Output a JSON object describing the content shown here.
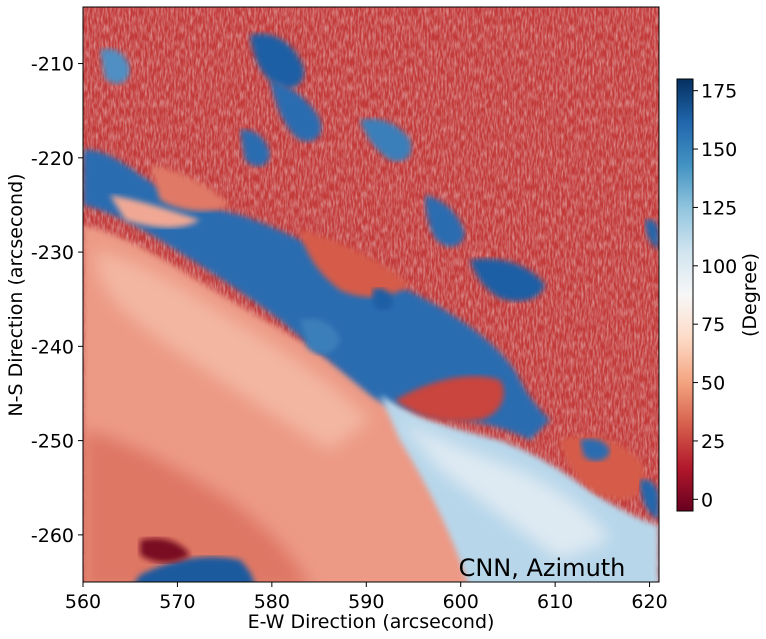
{
  "chart_data": {
    "type": "heatmap",
    "title": "",
    "xlabel": "E-W Direction (arcsecond)",
    "ylabel": "N-S Direction (arcsecond)",
    "xlim": [
      560,
      621
    ],
    "ylim": [
      -265,
      -204
    ],
    "xticks": [
      560,
      570,
      580,
      590,
      600,
      610,
      620
    ],
    "xtick_labels": [
      "560",
      "570",
      "580",
      "590",
      "600",
      "610",
      "620"
    ],
    "yticks": [
      -210,
      -220,
      -230,
      -240,
      -250,
      -260
    ],
    "ytick_labels": [
      "-210",
      "-220",
      "-230",
      "-240",
      "-250",
      "-260"
    ],
    "annotation": "CNN, Azimuth",
    "colorbar": {
      "label": "(Degree)",
      "range": [
        -5,
        180
      ],
      "ticks": [
        0,
        25,
        50,
        75,
        100,
        125,
        150,
        175
      ],
      "tick_labels": [
        "0",
        "25",
        "50",
        "75",
        "100",
        "125",
        "150",
        "175"
      ],
      "colormap": "RdBu",
      "colors": [
        "#67001f",
        "#b2182b",
        "#d6604d",
        "#f4a582",
        "#fddbc7",
        "#f7f7f7",
        "#d1e5f0",
        "#92c5de",
        "#4393c3",
        "#2166ac",
        "#053061"
      ]
    },
    "regions": [
      {
        "name": "background-red",
        "approx_value": 20
      },
      {
        "name": "lower-left-light-red",
        "approx_value": 45
      },
      {
        "name": "blue-filament-band",
        "approx_value": 150
      },
      {
        "name": "lower-right-light-blue",
        "approx_value": 110
      },
      {
        "name": "upper-left-blue-patches",
        "approx_value": 160
      }
    ]
  }
}
